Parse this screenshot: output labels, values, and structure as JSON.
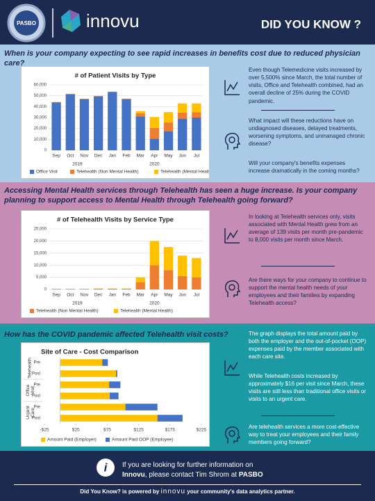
{
  "header": {
    "logo_text": "PASBO",
    "brand": "innovu",
    "banner": "DID YOU KNOW ?"
  },
  "sections": [
    {
      "question": "When is your company expecting to see rapid increases in benefits cost due to reduced physician care?",
      "paragraphs": [
        "Even though Telemedicine visits increased by over 5,500% since March, the total number of visits, Office and Telehealth combined, had an overall decline of 25% during the COVID pandemic.",
        "What impact will these reductions have on undiagnosed diseases, delayed treatments, worsening symptoms, and unmanaged chronic disease?",
        "Will your company's benefits expenses increase dramatically in the coming months?"
      ]
    },
    {
      "question": "Accessing Mental Health services through Telehealth has seen a huge increase. Is your company planning to support access to Mental Health through Telehealth going forward?",
      "paragraphs": [
        "In looking at Telehealth services only, visits associated with Mental Health grew from an average of 139 visits per month pre-pandemic to 8,000 visits per month since March.",
        "Are there ways for your company to continue to support the mental health needs of your employees and their families by expanding Telehealth access?"
      ]
    },
    {
      "question": "How has the COVID pandemic affected Telehealth visit costs?",
      "paragraphs": [
        "The graph displays the total amount paid by both the employer and the out-of-pocket (OOP) expenses paid by the member associated with each care site.",
        "While Telehealth costs increased by approximately $16 per visit since March, these visits are still less than traditional office visits or visits to an urgent care.",
        "Are telehealth services a more cost-effective way to treat your employees and their family members going forward?"
      ]
    }
  ],
  "chart_data": [
    {
      "type": "bar",
      "stacked": true,
      "title": "# of Patient Visits by Type",
      "categories": [
        "Sep",
        "Oct",
        "Nov",
        "Dec",
        "Jan",
        "Feb",
        "Mar",
        "Apr",
        "May",
        "Jun",
        "Jul"
      ],
      "category_groups": [
        {
          "label": "2019",
          "count": 4
        },
        {
          "label": "2020",
          "count": 7
        }
      ],
      "series": [
        {
          "name": "Office Visit",
          "color": "#4472c4",
          "values": [
            44000,
            51500,
            47000,
            49500,
            53500,
            47000,
            31000,
            10500,
            17500,
            29000,
            30000
          ]
        },
        {
          "name": "Telehealth (Non Mental Health)",
          "color": "#ed7d31",
          "values": [
            200,
            200,
            200,
            300,
            300,
            300,
            3000,
            10000,
            8000,
            5500,
            5000
          ]
        },
        {
          "name": "Telehealth (Mental Health)",
          "color": "#ffc000",
          "values": [
            100,
            100,
            100,
            100,
            100,
            100,
            2000,
            10000,
            9500,
            8500,
            8000
          ]
        }
      ],
      "ylim": [
        0,
        60000
      ],
      "yticks": [
        0,
        {
          "value": 10000,
          "label": "10,000"
        },
        {
          "value": 20000,
          "label": "20,000"
        },
        {
          "value": 30000,
          "label": "30,000"
        },
        {
          "value": 40000,
          "label": "40,000"
        },
        {
          "value": 50000,
          "label": "50,000"
        },
        {
          "value": 60000,
          "label": "60,000"
        }
      ],
      "grid": true
    },
    {
      "type": "bar",
      "stacked": true,
      "title": "# of Telehealth Visits by Service Type",
      "categories": [
        "Sep",
        "Oct",
        "Nov",
        "Dec",
        "Jan",
        "Feb",
        "Mar",
        "Apr",
        "May",
        "Jun",
        "Jul"
      ],
      "category_groups": [
        {
          "label": "2019",
          "count": 4
        },
        {
          "label": "2020",
          "count": 7
        }
      ],
      "series": [
        {
          "name": "Telehealth (Non Mental Health)",
          "color": "#ed7d31",
          "values": [
            200,
            200,
            200,
            300,
            300,
            300,
            3000,
            10000,
            8000,
            5500,
            5000
          ]
        },
        {
          "name": "Telehealth (Mental Health)",
          "color": "#ffc000",
          "values": [
            100,
            100,
            100,
            100,
            100,
            100,
            2000,
            10000,
            9500,
            8500,
            8000
          ]
        }
      ],
      "ylim": [
        0,
        25000
      ],
      "yticks": [
        0,
        {
          "value": 5000,
          "label": "5,000"
        },
        {
          "value": 10000,
          "label": "10,000"
        },
        {
          "value": 15000,
          "label": "15,000"
        },
        {
          "value": 20000,
          "label": "20,000"
        },
        {
          "value": 25000,
          "label": "25,000"
        }
      ],
      "grid": true
    },
    {
      "type": "bar",
      "stacked": true,
      "horizontal": true,
      "title": "Site of Care - Cost Comparison",
      "categories": [
        "Pre",
        "Post",
        "Pre",
        "Post",
        "Pre",
        "Post"
      ],
      "category_groups": [
        {
          "label": "Telehealth",
          "count": 2
        },
        {
          "label": "Office Visit",
          "count": 2
        },
        {
          "label": "Urgent Care",
          "count": 2
        }
      ],
      "series": [
        {
          "name": "Amount Paid (Employer)",
          "color": "#ffc000",
          "values": [
            67,
            89,
            78,
            79,
            104,
            155
          ]
        },
        {
          "name": "Amount Paid OOP (Employee)",
          "color": "#4472c4",
          "values": [
            9,
            2,
            18,
            14,
            51,
            40
          ]
        }
      ],
      "xlim": [
        -25,
        225
      ],
      "xticks": [
        {
          "value": -25,
          "label": "-$25"
        },
        {
          "value": 25,
          "label": "$25"
        },
        {
          "value": 75,
          "label": "$75"
        },
        {
          "value": 125,
          "label": "$125"
        },
        {
          "value": 175,
          "label": "$175"
        },
        {
          "value": 225,
          "label": "$225"
        }
      ],
      "grid": false
    }
  ],
  "footer": {
    "line1": "If you are looking for further information on",
    "name": "Innovu",
    "line2": ", please contact Tim Shrom at ",
    "org": "PASBO",
    "powered": "Did You Know? is powered by",
    "brand": "innovu",
    "tagline": "your community's data analytics partner."
  }
}
